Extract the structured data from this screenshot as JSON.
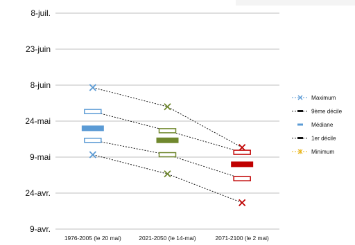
{
  "chart_data": {
    "type": "scatter",
    "title": "",
    "xlabel": "",
    "ylabel": "",
    "y_unit": "date",
    "categories": [
      "1976-2005 (le 20 mai)",
      "2021-2050 (le 14-mai)",
      "2071-2100 (le 2 mai)"
    ],
    "yticks": [
      "9-avr.",
      "24-avr.",
      "9-mai",
      "24-mai",
      "8-juin",
      "23-juin",
      "8-juil."
    ],
    "ylim": [
      "9-avr.",
      "8-juil."
    ],
    "grid": true,
    "legend_position": "right",
    "series": [
      {
        "name": "Maximum",
        "marker": "x",
        "values": [
          "7-juin",
          "30-mai",
          "13-mai"
        ],
        "colors": [
          "#5b9bd5",
          "#70882e",
          "#c00000"
        ]
      },
      {
        "name": "9ème décile",
        "marker": "hollow-bar",
        "values": [
          "28-mai",
          "20-mai",
          "11-mai"
        ],
        "colors": [
          "#5b9bd5",
          "#70882e",
          "#c00000"
        ]
      },
      {
        "name": "Médiane",
        "marker": "bar",
        "values": [
          "21-mai",
          "16-mai",
          "6-mai"
        ],
        "colors": [
          "#5b9bd5",
          "#70882e",
          "#c00000"
        ]
      },
      {
        "name": "1er décile",
        "marker": "hollow-bar",
        "values": [
          "16-mai",
          "10-mai",
          "30-avr."
        ],
        "colors": [
          "#5b9bd5",
          "#70882e",
          "#c00000"
        ]
      },
      {
        "name": "Minimum",
        "marker": "x",
        "values": [
          "10-mai",
          "2-mai",
          "20-avr."
        ],
        "colors": [
          "#5b9bd5",
          "#70882e",
          "#c00000"
        ]
      }
    ],
    "legend": [
      {
        "label": "Maximum",
        "line": "dashed-blue",
        "marker": "x",
        "color": "#5b9bd5"
      },
      {
        "label": "9ème décile",
        "line": "dashed-black",
        "marker": "dash",
        "color": "#111111"
      },
      {
        "label": "Médiane",
        "line": "none",
        "marker": "dash",
        "color": "#5b9bd5"
      },
      {
        "label": "1er décile",
        "line": "dashed-black",
        "marker": "dash",
        "color": "#111111"
      },
      {
        "label": "Minimum",
        "line": "dashed-gold",
        "marker": "star",
        "color": "#e8b417"
      }
    ]
  }
}
